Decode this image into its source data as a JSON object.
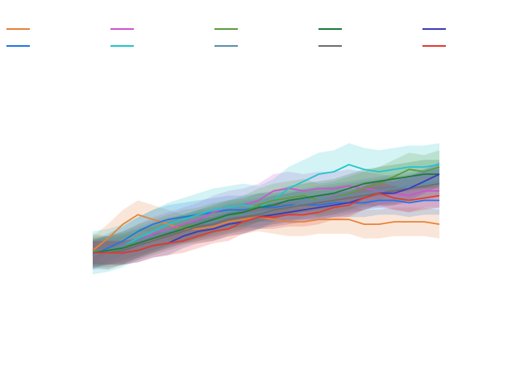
{
  "chart_data": {
    "type": "line",
    "title": "",
    "xlabel": "",
    "ylabel": "",
    "xlim": [
      0,
      23
    ],
    "ylim": [
      -0.15,
      1.0
    ],
    "grid": false,
    "axes_visible": false,
    "legend": {
      "placement": "top",
      "columns": 5,
      "rows": 2,
      "labels_visible": false
    },
    "band_opacity": 0.2,
    "x": [
      0,
      1,
      2,
      3,
      4,
      5,
      6,
      7,
      8,
      9,
      10,
      11,
      12,
      13,
      14,
      15,
      16,
      17,
      18,
      19,
      20,
      21,
      22,
      23
    ],
    "series": [
      {
        "color": "#e8823a",
        "values": [
          0.22,
          0.27,
          0.33,
          0.37,
          0.35,
          0.33,
          0.31,
          0.31,
          0.32,
          0.34,
          0.35,
          0.36,
          0.35,
          0.34,
          0.34,
          0.35,
          0.35,
          0.35,
          0.33,
          0.33,
          0.34,
          0.34,
          0.34,
          0.33
        ],
        "band": [
          0.06,
          0.06,
          0.06,
          0.06,
          0.06,
          0.06,
          0.06,
          0.06,
          0.06,
          0.06,
          0.06,
          0.06,
          0.06,
          0.06,
          0.06,
          0.06,
          0.06,
          0.06,
          0.06,
          0.06,
          0.06,
          0.06,
          0.06,
          0.06
        ]
      },
      {
        "color": "#1f77e4",
        "values": [
          0.2,
          0.23,
          0.26,
          0.3,
          0.33,
          0.35,
          0.36,
          0.37,
          0.38,
          0.39,
          0.39,
          0.4,
          0.4,
          0.41,
          0.41,
          0.41,
          0.42,
          0.42,
          0.42,
          0.43,
          0.43,
          0.42,
          0.43,
          0.43
        ],
        "band": [
          0.06,
          0.06,
          0.06,
          0.06,
          0.06,
          0.06,
          0.06,
          0.06,
          0.06,
          0.06,
          0.06,
          0.06,
          0.06,
          0.06,
          0.06,
          0.06,
          0.06,
          0.06,
          0.06,
          0.06,
          0.06,
          0.06,
          0.06,
          0.06
        ]
      },
      {
        "color": "#cc55cc",
        "values": [
          0.21,
          0.21,
          0.23,
          0.26,
          0.29,
          0.31,
          0.33,
          0.35,
          0.38,
          0.4,
          0.41,
          0.43,
          0.47,
          0.48,
          0.47,
          0.48,
          0.48,
          0.49,
          0.48,
          0.47,
          0.46,
          0.45,
          0.47,
          0.47
        ],
        "band": [
          0.07,
          0.07,
          0.07,
          0.07,
          0.07,
          0.07,
          0.07,
          0.07,
          0.07,
          0.07,
          0.07,
          0.07,
          0.07,
          0.07,
          0.07,
          0.07,
          0.07,
          0.07,
          0.07,
          0.07,
          0.07,
          0.07,
          0.07,
          0.07
        ]
      },
      {
        "color": "#22c4cc",
        "values": [
          0.21,
          0.22,
          0.24,
          0.27,
          0.3,
          0.33,
          0.35,
          0.37,
          0.39,
          0.4,
          0.41,
          0.4,
          0.43,
          0.48,
          0.51,
          0.54,
          0.55,
          0.58,
          0.56,
          0.55,
          0.56,
          0.57,
          0.57,
          0.58
        ],
        "band": [
          0.09,
          0.09,
          0.09,
          0.09,
          0.09,
          0.09,
          0.09,
          0.09,
          0.09,
          0.09,
          0.09,
          0.09,
          0.09,
          0.09,
          0.09,
          0.09,
          0.09,
          0.09,
          0.09,
          0.09,
          0.09,
          0.09,
          0.09,
          0.09
        ]
      },
      {
        "color": "#5e9c3c",
        "values": [
          0.22,
          0.21,
          0.23,
          0.26,
          0.28,
          0.3,
          0.32,
          0.33,
          0.35,
          0.36,
          0.38,
          0.41,
          0.43,
          0.44,
          0.45,
          0.43,
          0.44,
          0.46,
          0.48,
          0.5,
          0.53,
          0.56,
          0.55,
          0.57
        ],
        "band": [
          0.07,
          0.07,
          0.07,
          0.07,
          0.07,
          0.07,
          0.07,
          0.07,
          0.07,
          0.07,
          0.07,
          0.07,
          0.07,
          0.07,
          0.07,
          0.07,
          0.07,
          0.07,
          0.07,
          0.07,
          0.07,
          0.07,
          0.07,
          0.07
        ]
      },
      {
        "color": "#5b8fa8",
        "values": [
          0.2,
          0.22,
          0.24,
          0.26,
          0.28,
          0.3,
          0.31,
          0.33,
          0.34,
          0.36,
          0.37,
          0.38,
          0.39,
          0.4,
          0.42,
          0.43,
          0.44,
          0.45,
          0.46,
          0.47,
          0.48,
          0.49,
          0.5,
          0.51
        ],
        "band": [
          0.06,
          0.06,
          0.06,
          0.06,
          0.06,
          0.06,
          0.06,
          0.06,
          0.06,
          0.06,
          0.06,
          0.06,
          0.06,
          0.06,
          0.06,
          0.06,
          0.06,
          0.06,
          0.06,
          0.06,
          0.06,
          0.06,
          0.06,
          0.06
        ]
      },
      {
        "color": "#1e7a3c",
        "values": [
          0.21,
          0.22,
          0.23,
          0.25,
          0.27,
          0.29,
          0.31,
          0.33,
          0.35,
          0.37,
          0.38,
          0.4,
          0.41,
          0.43,
          0.44,
          0.45,
          0.46,
          0.48,
          0.5,
          0.51,
          0.52,
          0.53,
          0.54,
          0.54
        ],
        "band": [
          0.06,
          0.06,
          0.06,
          0.06,
          0.06,
          0.06,
          0.06,
          0.06,
          0.06,
          0.06,
          0.06,
          0.06,
          0.06,
          0.06,
          0.06,
          0.06,
          0.06,
          0.06,
          0.06,
          0.06,
          0.06,
          0.06,
          0.06,
          0.06
        ]
      },
      {
        "color": "#6e6e6e",
        "values": [
          0.21,
          0.21,
          0.22,
          0.24,
          0.26,
          0.28,
          0.3,
          0.32,
          0.33,
          0.35,
          0.36,
          0.37,
          0.39,
          0.4,
          0.41,
          0.42,
          0.43,
          0.44,
          0.45,
          0.46,
          0.47,
          0.48,
          0.49,
          0.5
        ],
        "band": [
          0.06,
          0.06,
          0.06,
          0.06,
          0.06,
          0.06,
          0.06,
          0.06,
          0.06,
          0.06,
          0.06,
          0.06,
          0.06,
          0.06,
          0.06,
          0.06,
          0.06,
          0.06,
          0.06,
          0.06,
          0.06,
          0.06,
          0.06,
          0.06
        ]
      },
      {
        "color": "#3b3bb8",
        "values": [
          0.21,
          0.21,
          0.21,
          0.22,
          0.24,
          0.25,
          0.28,
          0.3,
          0.31,
          0.33,
          0.34,
          0.36,
          0.37,
          0.38,
          0.39,
          0.4,
          0.41,
          0.42,
          0.44,
          0.46,
          0.46,
          0.48,
          0.51,
          0.54
        ],
        "band": [
          0.05,
          0.05,
          0.05,
          0.05,
          0.05,
          0.05,
          0.05,
          0.05,
          0.05,
          0.05,
          0.05,
          0.05,
          0.05,
          0.05,
          0.05,
          0.05,
          0.05,
          0.05,
          0.05,
          0.05,
          0.05,
          0.05,
          0.05,
          0.05
        ]
      },
      {
        "color": "#e03c2f",
        "values": [
          0.21,
          0.21,
          0.21,
          0.22,
          0.24,
          0.25,
          0.26,
          0.28,
          0.3,
          0.31,
          0.34,
          0.36,
          0.36,
          0.37,
          0.37,
          0.38,
          0.4,
          0.41,
          0.44,
          0.46,
          0.44,
          0.43,
          0.44,
          0.45
        ],
        "band": [
          0.05,
          0.05,
          0.05,
          0.05,
          0.05,
          0.05,
          0.05,
          0.05,
          0.05,
          0.05,
          0.05,
          0.05,
          0.05,
          0.05,
          0.05,
          0.05,
          0.05,
          0.05,
          0.05,
          0.05,
          0.05,
          0.05,
          0.05,
          0.05
        ]
      }
    ]
  }
}
